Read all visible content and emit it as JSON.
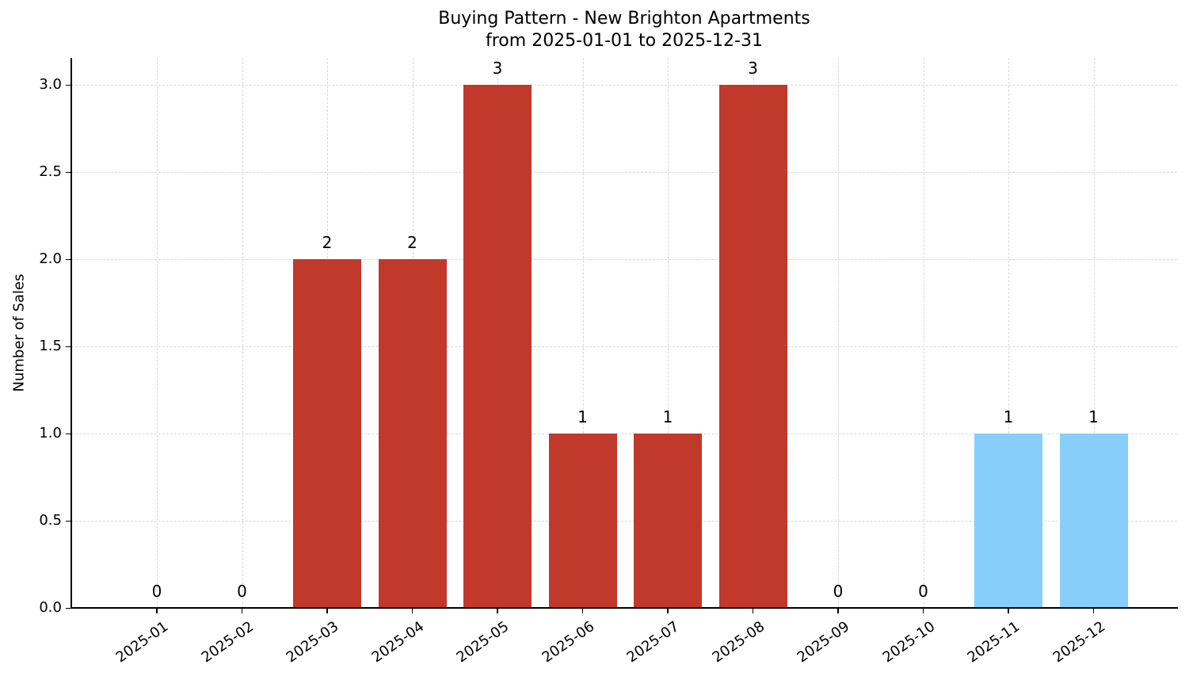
{
  "chart_data": {
    "type": "bar",
    "title": "Buying Pattern - New Brighton Apartments",
    "subtitle": "from 2025-01-01 to 2025-12-31",
    "xlabel": "",
    "ylabel": "Number of Sales",
    "ylim": [
      0,
      3.15
    ],
    "yticks": [
      "0.0",
      "0.5",
      "1.0",
      "1.5",
      "2.0",
      "2.5",
      "3.0"
    ],
    "grid": true,
    "legend": null,
    "categories": [
      "2025-01",
      "2025-02",
      "2025-03",
      "2025-04",
      "2025-05",
      "2025-06",
      "2025-07",
      "2025-08",
      "2025-09",
      "2025-10",
      "2025-11",
      "2025-12"
    ],
    "values": [
      0,
      0,
      2,
      2,
      3,
      1,
      1,
      3,
      0,
      0,
      1,
      1
    ],
    "bar_colors": [
      "#c0392b",
      "#c0392b",
      "#c0392b",
      "#c0392b",
      "#c0392b",
      "#c0392b",
      "#c0392b",
      "#c0392b",
      "#c0392b",
      "#c0392b",
      "#87cefa",
      "#87cefa"
    ],
    "data_labels": [
      "0",
      "0",
      "2",
      "2",
      "3",
      "1",
      "1",
      "3",
      "0",
      "0",
      "1",
      "1"
    ]
  },
  "colors": {
    "past": "#c0392b",
    "future": "#87cefa"
  }
}
